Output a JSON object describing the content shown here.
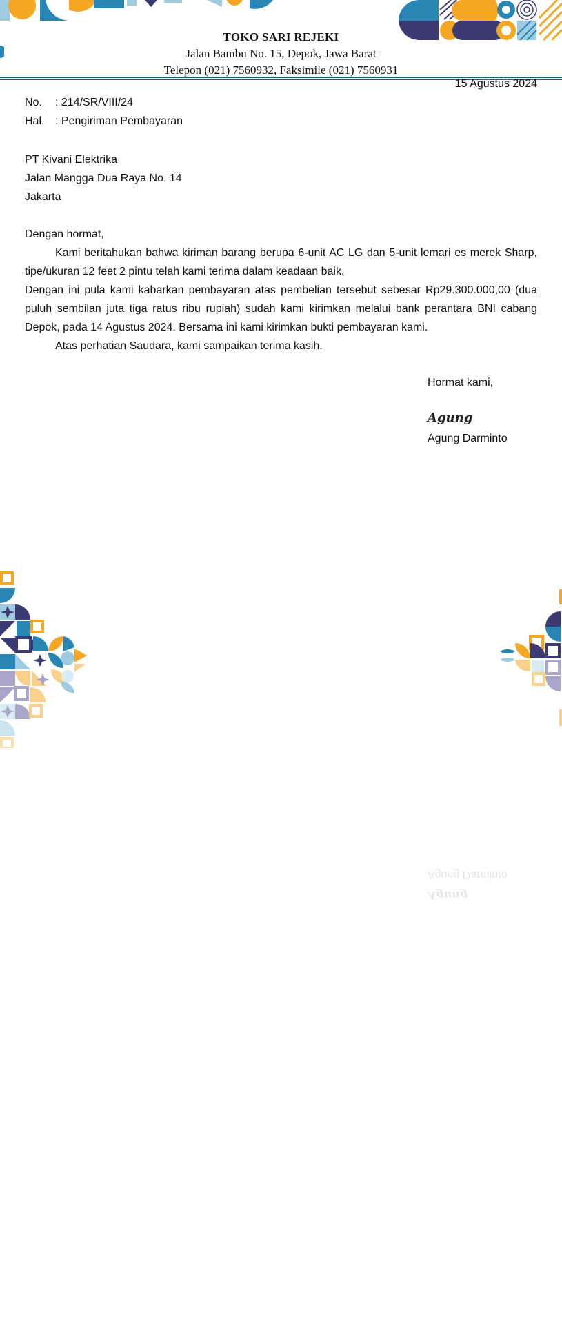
{
  "letterhead": {
    "company": "TOKO SARI REJEKI",
    "address": "Jalan Bambu No. 15, Depok, Jawa Barat",
    "contact": "Telepon (021) 7560932, Faksimile (021) 7560931"
  },
  "date": "15 Agustus 2024",
  "meta": {
    "no_label": "No.",
    "no_value": ": 214/SR/VIII/24",
    "hal_label": "Hal.",
    "hal_value": ": Pengiriman Pembayaran"
  },
  "recipient": {
    "name": "PT Kivani Elektrika",
    "street": "Jalan Mangga Dua Raya No. 14",
    "city": "Jakarta"
  },
  "body": {
    "salutation": "Dengan hormat,",
    "p1": "Kami beritahukan bahwa kiriman barang berupa 6-unit AC LG dan 5-unit lemari es merek Sharp, tipe/ukuran 12 feet 2 pintu telah kami terima dalam keadaan baik.",
    "p2": "Dengan ini pula kami kabarkan pembayaran atas pembelian tersebut sebesar Rp29.300.000,00 (dua puluh sembilan juta tiga ratus ribu rupiah) sudah kami kirimkan melalui bank perantara BNI cabang Depok, pada 14 Agustus 2024. Bersama ini kami kirimkan bukti pembayaran kami.",
    "p3": "Atas perhatian Saudara, kami sampaikan terima kasih."
  },
  "closing": {
    "greeting": "Hormat kami,",
    "signature": "Agung",
    "signer_name": "Agung Darminto"
  },
  "colors": {
    "navy": "#3b3a72",
    "orange": "#f5a623",
    "blue": "#2986b4",
    "lightblue": "#9ecbe0",
    "lavender": "#a9a6c9",
    "peach": "#f8d08c",
    "rule": "#1f5f7a"
  }
}
